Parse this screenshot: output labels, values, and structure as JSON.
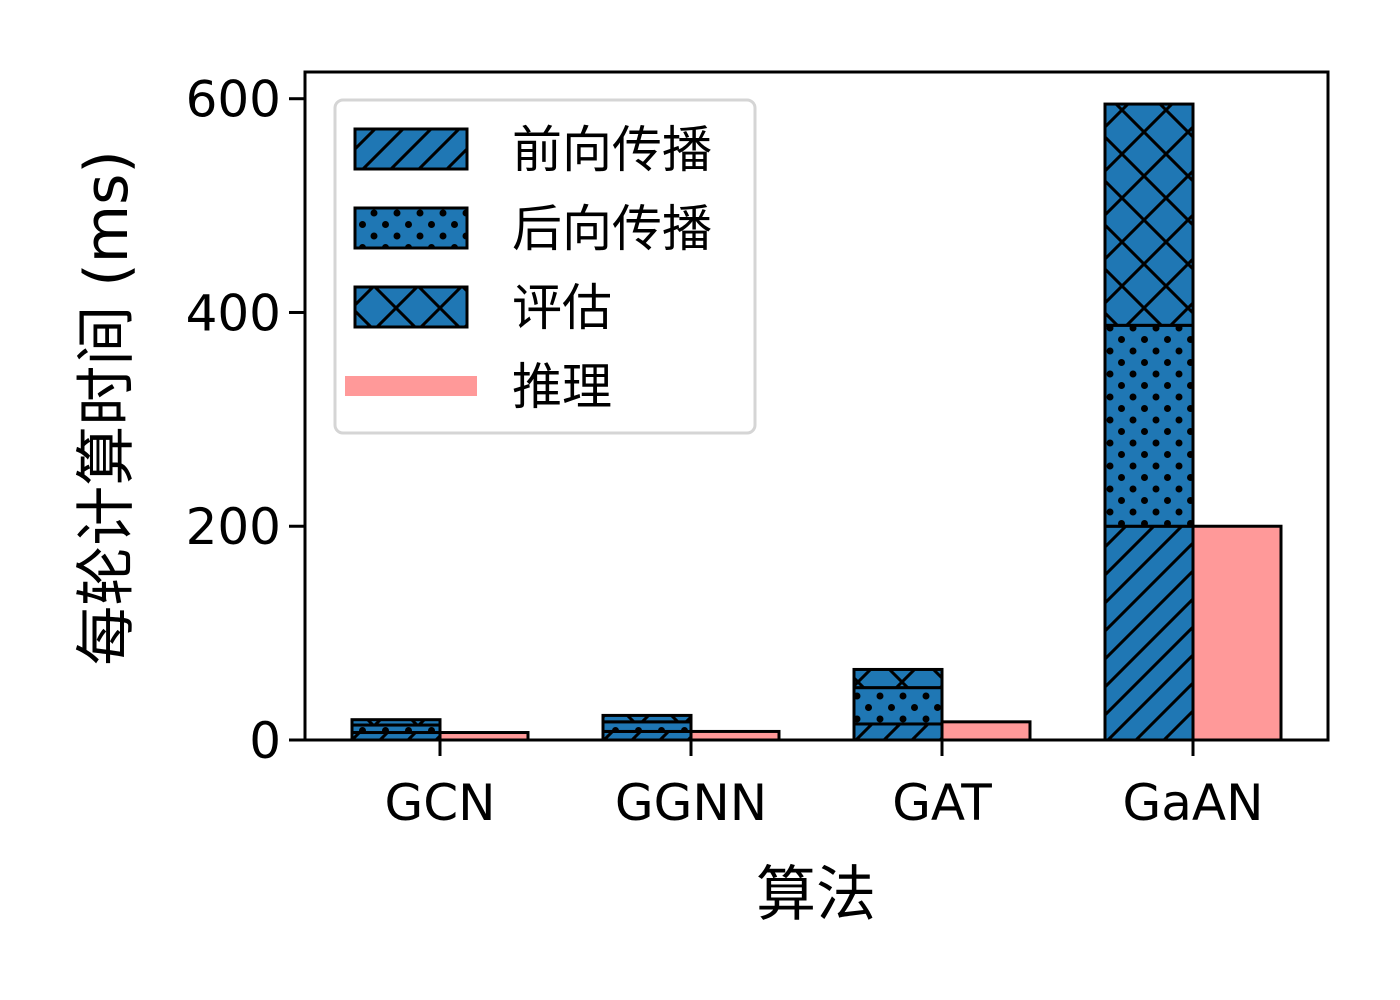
{
  "chart_data": {
    "type": "bar",
    "title": "",
    "xlabel": "算法",
    "ylabel": "每轮计算时间 (ms)",
    "categories": [
      "GCN",
      "GGNN",
      "GAT",
      "GaAN"
    ],
    "ylim": [
      0,
      625
    ],
    "yticks": [
      0,
      200,
      400,
      600
    ],
    "grid": false,
    "legend_position": "top-left",
    "stacked_series": [
      {
        "name": "前向传播",
        "hatch": "diagonal",
        "color": "#1f77b4",
        "values": [
          7,
          8,
          15,
          200
        ]
      },
      {
        "name": "后向传播",
        "hatch": "dots",
        "color": "#1f77b4",
        "values": [
          7,
          9,
          34,
          188
        ]
      },
      {
        "name": "评估",
        "hatch": "crosshatch",
        "color": "#1f77b4",
        "values": [
          5,
          6,
          17,
          207
        ]
      }
    ],
    "side_series": [
      {
        "name": "推理",
        "color": "#ff9999",
        "values": [
          7,
          8,
          17,
          200
        ]
      }
    ]
  }
}
